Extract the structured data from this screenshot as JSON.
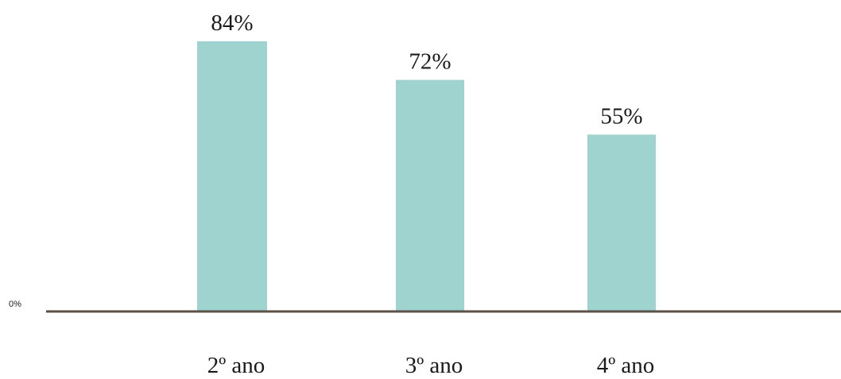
{
  "chart_data": {
    "type": "bar",
    "categories": [
      "2º ano",
      "3º ano",
      "4º ano"
    ],
    "values": [
      84,
      72,
      55
    ],
    "value_labels": [
      "84%",
      "72%",
      "55%"
    ],
    "y_tick_labels": [
      "0%"
    ],
    "title": "",
    "xlabel": "",
    "ylabel": "",
    "ylim": [
      0,
      84
    ],
    "grid": false,
    "legend": "none",
    "colors": {
      "bar": "#9fd3cf",
      "axis": "#5a5248",
      "text": "#1a1a1a"
    }
  }
}
